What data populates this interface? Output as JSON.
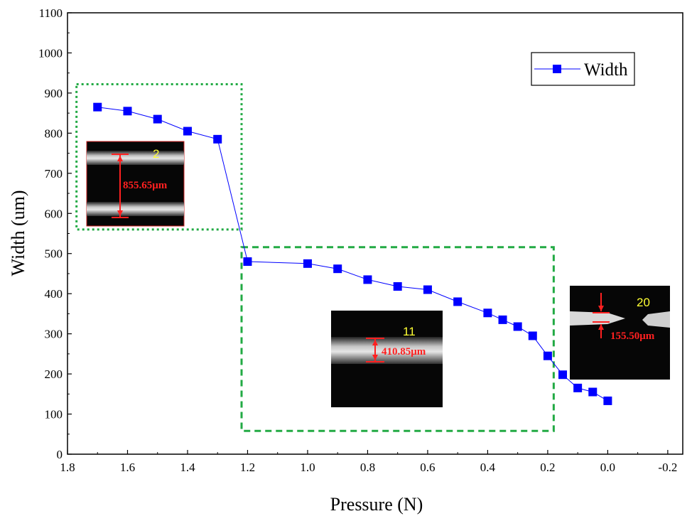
{
  "chart_data": {
    "type": "line",
    "xlabel": "Pressure (N)",
    "ylabel": "Width (um)",
    "xlim": [
      1.8,
      -0.25
    ],
    "ylim": [
      0,
      1100
    ],
    "x_ticks": [
      "1.8",
      "1.6",
      "1.4",
      "1.2",
      "1.0",
      "0.8",
      "0.6",
      "0.4",
      "0.2",
      "0.0",
      "-0.2"
    ],
    "x_tick_values": [
      1.8,
      1.6,
      1.4,
      1.2,
      1.0,
      0.8,
      0.6,
      0.4,
      0.2,
      0.0,
      -0.2
    ],
    "y_ticks": [
      "0",
      "100",
      "200",
      "300",
      "400",
      "500",
      "600",
      "700",
      "800",
      "900",
      "1000",
      "1100"
    ],
    "y_tick_values": [
      0,
      100,
      200,
      300,
      400,
      500,
      600,
      700,
      800,
      900,
      1000,
      1100
    ],
    "series": [
      {
        "name": "Width",
        "color": "#0000ff",
        "marker": "square",
        "x": [
          1.7,
          1.6,
          1.5,
          1.4,
          1.3,
          1.2,
          1.0,
          0.9,
          0.8,
          0.7,
          0.6,
          0.5,
          0.4,
          0.35,
          0.3,
          0.25,
          0.2,
          0.15,
          0.1,
          0.05,
          0.0
        ],
        "y": [
          865,
          855,
          835,
          805,
          785,
          480,
          475,
          462,
          435,
          418,
          410,
          380,
          352,
          335,
          318,
          295,
          245,
          198,
          165,
          155,
          133
        ]
      }
    ],
    "legend": {
      "label": "Width",
      "position": "top-right"
    },
    "highlight_boxes": [
      {
        "x_range": [
          1.77,
          1.22
        ],
        "y_range": [
          560,
          922
        ],
        "style": "dotted",
        "color": "#22aa44"
      },
      {
        "x_range": [
          1.22,
          0.18
        ],
        "y_range": [
          58,
          516
        ],
        "style": "dashed",
        "color": "#22aa44"
      }
    ],
    "insets": [
      {
        "label": "2",
        "measurement": "855.65μm"
      },
      {
        "label": "11",
        "measurement": "410.85μm"
      },
      {
        "label": "20",
        "measurement": "155.50μm"
      }
    ]
  }
}
